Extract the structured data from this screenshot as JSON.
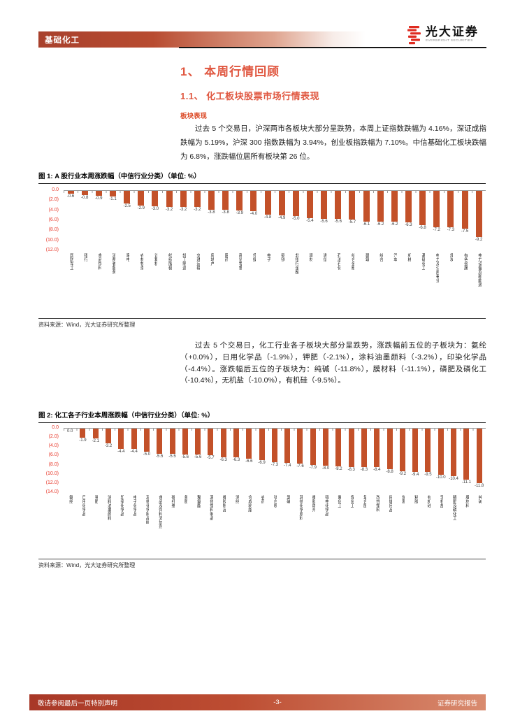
{
  "header": {
    "category": "基础化工",
    "brand_name": "光大证券",
    "brand_name_en": "EVERBRIGHT SECURITIES"
  },
  "content": {
    "h1": "1、 本周行情回顾",
    "h2": "1.1、 化工板块股票市场行情表现",
    "tag": "板块表现",
    "para1": "过去 5 个交易日，沪深两市各板块大部分呈跌势，本周上证指数跌幅为 4.16%，深证成指跌幅为 5.19%，沪深 300 指数跌幅为 3.94%，创业板指跌幅为 7.10%。中信基础化工板块跌幅为 6.8%，涨跌幅位居所有板块第 26 位。",
    "para2": "过去 5 个交易日，化工行业各子板块大部分呈跌势，涨跌幅前五位的子板块为：氨纶（+0.0%），日用化学品（-1.9%），钾肥（-2.1%），涂料油墨颜料（-3.2%），印染化学品（-4.4%）。涨跌幅后五位的子板块为：纯碱（-11.8%），膜材料（-11.1%），磷肥及磷化工（-10.4%），无机盐（-10.0%），有机硅（-9.5%）。"
  },
  "figure1": {
    "caption": "图 1: A 股行业本周涨跌幅（中信行业分类）（单位: %）",
    "source": "资料来源：Wind，光大证券研究所整理"
  },
  "figure2": {
    "caption": "图 2: 化工各子行业本周涨跌幅（中信行业分类）（单位: %）",
    "source": "资料来源：Wind，光大证券研究所整理"
  },
  "footer": {
    "left": "敬请参阅最后一页特别声明",
    "page": "-3-",
    "right": "证券研究报告"
  },
  "colors": {
    "bar": "#c35129",
    "heading_accent": "#e05740",
    "axis_tick_red": "#e8392b",
    "logo_red": "#df2b20"
  },
  "chart_data": [
    {
      "type": "bar",
      "title": "A股行业本周涨跌幅（中信行业分类）",
      "unit": "%",
      "categories": [
        "国防军工",
        "银行",
        "食品饮料",
        "消费者服务",
        "家电",
        "农林牧渔",
        "计算机",
        "纺织服装",
        "轻工制造",
        "交通运输",
        "房地产",
        "医药",
        "商贸零售",
        "传媒",
        "电子",
        "钢铁",
        "非银行金融",
        "建材",
        "通信",
        "石油石化",
        "综合金融",
        "建筑",
        "综合",
        "汽车",
        "机械",
        "基础化工",
        "电力及公用事业",
        "煤炭",
        "有色金属",
        "电力设备及新能源"
      ],
      "values": [
        -0.6,
        -0.8,
        -0.9,
        -1.1,
        -2.5,
        -2.9,
        -3.0,
        -3.2,
        -3.2,
        -3.2,
        -3.8,
        -3.8,
        -3.9,
        -4.0,
        -4.8,
        -4.9,
        -5.0,
        -5.4,
        -5.6,
        -5.6,
        -5.7,
        -6.1,
        -6.2,
        -6.2,
        -6.3,
        -6.8,
        -7.2,
        -7.3,
        -7.5,
        -9.2
      ],
      "ylim": [
        -12,
        0
      ],
      "ytick_step": 2,
      "yticks": [
        "0.0",
        "(2.0)",
        "(4.0)",
        "(6.0)",
        "(8.0)",
        "(10.0)",
        "(12.0)"
      ],
      "grid": false,
      "legend": null,
      "bar_color": "#c35129"
    },
    {
      "type": "bar",
      "title": "化工各子行业本周涨跌幅（中信行业分类）",
      "unit": "%",
      "categories": [
        "氨纶",
        "日用化学品",
        "钾肥",
        "涂料油墨颜料",
        "印染化学品",
        "电子化学品",
        "其他化学制品Ⅲ",
        "食品及饲料添加剂",
        "碳纤维",
        "氮肥",
        "聚氨酯",
        "其他塑料制品",
        "橡胶制品",
        "涤纶",
        "合成树脂",
        "农药",
        "钛白粉",
        "氯碱",
        "其他化学原料",
        "橡胶助剂",
        "锂电化学品",
        "氟化工",
        "煤化工",
        "复合肥",
        "改性塑料",
        "民爆用品",
        "炭黑",
        "粘胶",
        "有机硅",
        "无机盐",
        "磷肥及磷化工",
        "膜材料",
        "纯碱"
      ],
      "values": [
        0.0,
        -1.9,
        -2.1,
        -3.2,
        -4.4,
        -4.4,
        -5.0,
        -5.5,
        -5.5,
        -5.6,
        -5.6,
        -5.7,
        -6.3,
        -6.3,
        -6.6,
        -6.9,
        -7.3,
        -7.4,
        -7.6,
        -7.9,
        -8.0,
        -8.2,
        -8.3,
        -8.3,
        -8.4,
        -8.8,
        -9.2,
        -9.4,
        -9.5,
        -10.0,
        -10.4,
        -11.1,
        -11.8
      ],
      "ylim": [
        -14,
        0
      ],
      "ytick_step": 2,
      "yticks": [
        "0.0",
        "(2.0)",
        "(4.0)",
        "(6.0)",
        "(8.0)",
        "(10.0)",
        "(12.0)",
        "(14.0)"
      ],
      "grid": false,
      "legend": null,
      "bar_color": "#c35129"
    }
  ]
}
